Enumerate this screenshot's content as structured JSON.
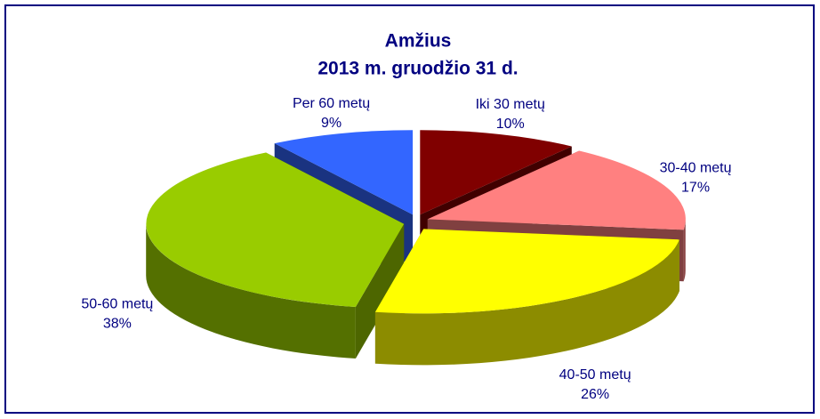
{
  "chart_data": {
    "type": "pie3d",
    "title": "Amžius",
    "subtitle": "2013 m. gruodžio 31 d.",
    "categories": [
      "Iki 30 metų",
      "30-40 metų",
      "40-50 metų",
      "50-60 metų",
      "Per 60 metų"
    ],
    "values": [
      10,
      17,
      26,
      38,
      9
    ],
    "value_labels": [
      "10%",
      "17%",
      "26%",
      "38%",
      "9%"
    ],
    "colors": [
      "#800000",
      "#ff8080",
      "#ffff00",
      "#99cc00",
      "#3366ff"
    ]
  }
}
